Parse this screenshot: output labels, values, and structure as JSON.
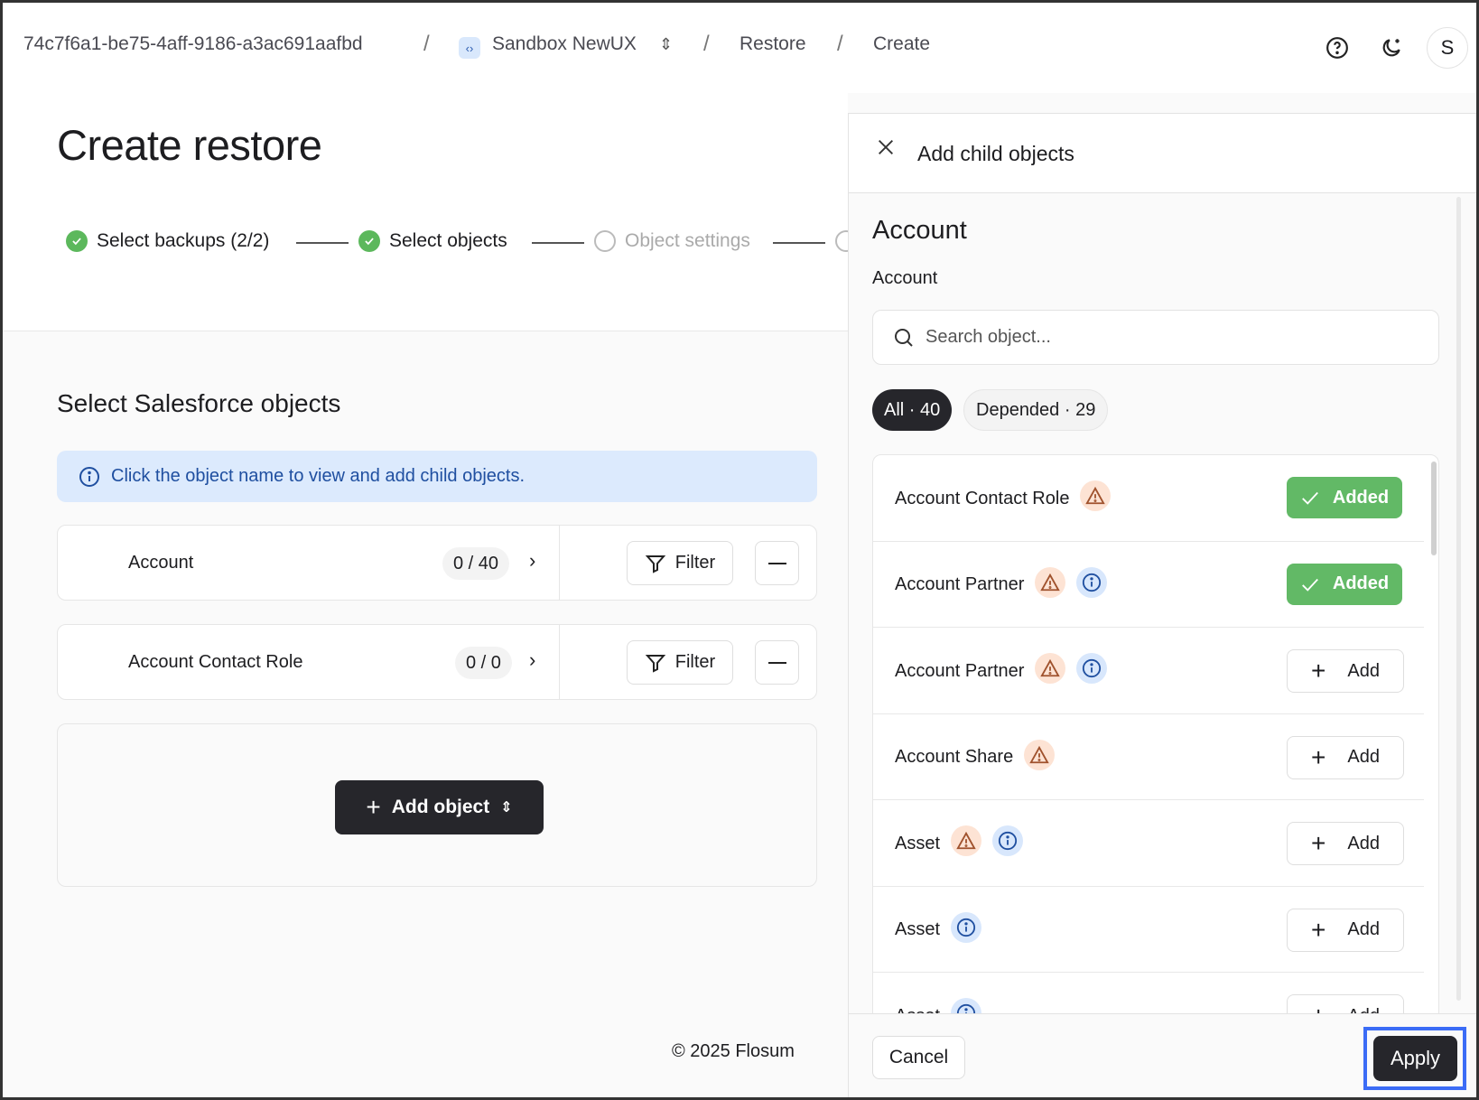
{
  "breadcrumb": {
    "org_id": "74c7f6a1-be75-4aff-9186-a3ac691aafbd",
    "sandbox": "Sandbox NewUX",
    "restore": "Restore",
    "create": "Create",
    "separator": "/"
  },
  "header": {
    "avatar_initial": "S",
    "icons": [
      "help-icon",
      "theme-moon-icon"
    ]
  },
  "page": {
    "title": "Create restore",
    "steps": [
      {
        "label": "Select backups (2/2)",
        "status": "complete"
      },
      {
        "label": "Select objects",
        "status": "complete"
      },
      {
        "label": "Object settings",
        "status": "pending"
      },
      {
        "label": "",
        "status": "pending"
      }
    ],
    "section_title": "Select Salesforce objects",
    "info_banner": "Click the object name to view and add child objects.",
    "objects": [
      {
        "name": "Account",
        "count": "0 / 40",
        "filter_label": "Filter"
      },
      {
        "name": "Account Contact Role",
        "count": "0 / 0",
        "filter_label": "Filter"
      }
    ],
    "add_object_label": "Add object",
    "footer": "© 2025 Flosum"
  },
  "panel": {
    "title": "Add child objects",
    "object_heading": "Account",
    "object_subheading": "Account",
    "search_placeholder": "Search object...",
    "chips": [
      {
        "label": "All · 40",
        "active": true
      },
      {
        "label": "Depended · 29",
        "active": false
      }
    ],
    "items": [
      {
        "name": "Account Contact Role",
        "warning": true,
        "info": false,
        "state": "Added"
      },
      {
        "name": "Account Partner",
        "warning": true,
        "info": true,
        "state": "Added"
      },
      {
        "name": "Account Partner",
        "warning": true,
        "info": true,
        "state": "Add"
      },
      {
        "name": "Account Share",
        "warning": true,
        "info": false,
        "state": "Add"
      },
      {
        "name": "Asset",
        "warning": true,
        "info": true,
        "state": "Add"
      },
      {
        "name": "Asset",
        "warning": false,
        "info": true,
        "state": "Add"
      },
      {
        "name": "Asset",
        "warning": false,
        "info": true,
        "state": "Add"
      }
    ],
    "cancel_label": "Cancel",
    "apply_label": "Apply"
  },
  "colors": {
    "success": "#62b966",
    "dark": "#26262b",
    "info_bg": "#dceafd",
    "warning_bg": "#fde3d4",
    "highlight": "#3b6cf6"
  }
}
